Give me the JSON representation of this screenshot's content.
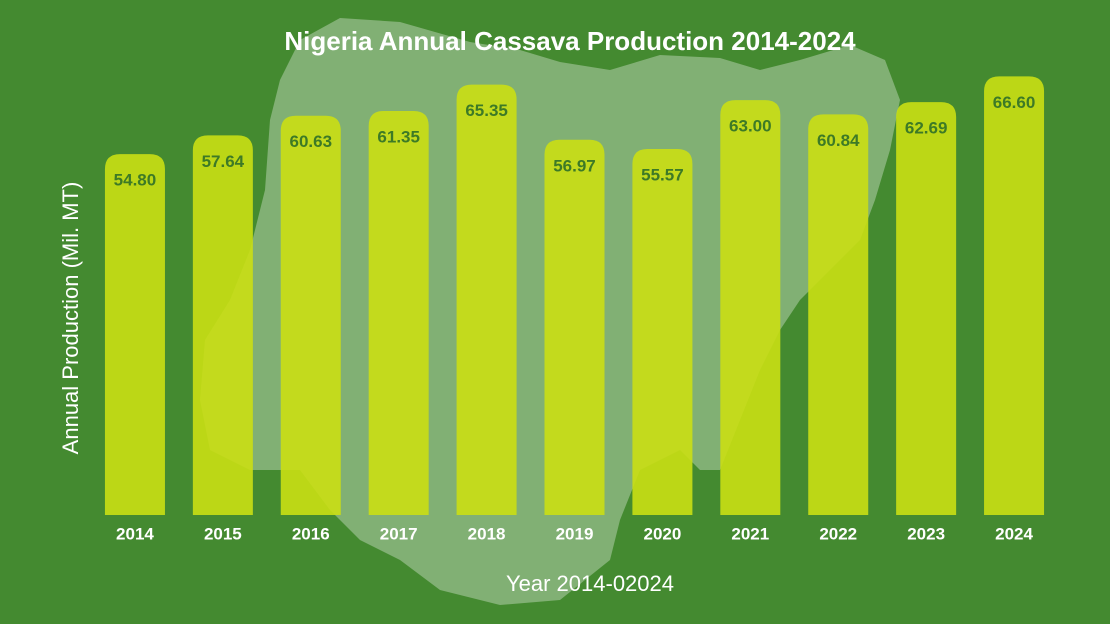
{
  "chart_data": {
    "type": "bar",
    "title": "Nigeria Annual Cassava Production 2014-2024",
    "x_label": "Year 2014-02024",
    "y_label": "Annual Production (Mil. MT)",
    "categories": [
      "2014",
      "2015",
      "2016",
      "2017",
      "2018",
      "2019",
      "2020",
      "2021",
      "2022",
      "2023",
      "2024"
    ],
    "values": [
      54.8,
      57.64,
      60.63,
      61.35,
      65.35,
      56.97,
      55.57,
      63,
      60.84,
      62.69,
      66.6
    ],
    "value_labels": [
      "54.80",
      "57.64",
      "60.63",
      "61.35",
      "65.35",
      "56.97",
      "55.57",
      "63.00",
      "60.84",
      "62.69",
      "66.60"
    ],
    "color": "#cadf14",
    "ylim": [
      0,
      70
    ]
  }
}
